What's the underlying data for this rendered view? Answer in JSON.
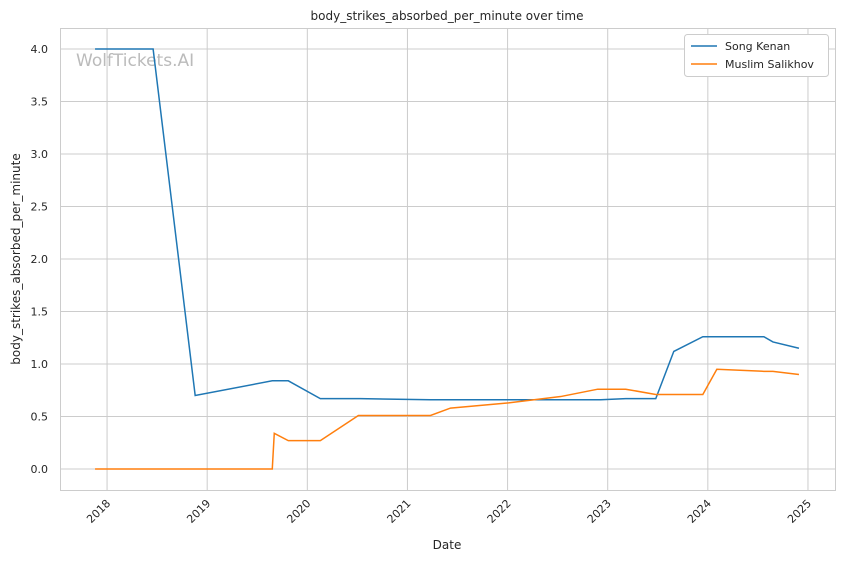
{
  "chart_data": {
    "type": "line",
    "title": "body_strikes_absorbed_per_minute over time",
    "xlabel": "Date",
    "ylabel": "body_strikes_absorbed_per_minute",
    "xlim": [
      2017.53,
      2025.27
    ],
    "ylim": [
      -0.2,
      4.2
    ],
    "x_ticks": [
      2018,
      2019,
      2020,
      2021,
      2022,
      2023,
      2024,
      2025
    ],
    "x_tick_labels": [
      "2018",
      "2019",
      "2020",
      "2021",
      "2022",
      "2023",
      "2024",
      "2025"
    ],
    "y_ticks": [
      0,
      0.5,
      1,
      1.5,
      2,
      2.5,
      3,
      3.5,
      4
    ],
    "y_tick_labels": [
      "0.0",
      "0.5",
      "1.0",
      "1.5",
      "2.0",
      "2.5",
      "3.0",
      "3.5",
      "4.0"
    ],
    "grid": true,
    "legend_position": "top-right",
    "watermark": "WolfTickets.AI",
    "series": [
      {
        "name": "Song Kenan",
        "color": "#1f77b4",
        "x": [
          2017.88,
          2018.46,
          2018.88,
          2019.65,
          2019.81,
          2020.13,
          2020.53,
          2021.23,
          2022.93,
          2023.18,
          2023.48,
          2023.66,
          2023.95,
          2024.56,
          2024.65,
          2024.91
        ],
        "y": [
          4.0,
          4.0,
          0.7,
          0.84,
          0.84,
          0.67,
          0.67,
          0.66,
          0.66,
          0.67,
          0.67,
          1.12,
          1.26,
          1.26,
          1.21,
          1.15
        ]
      },
      {
        "name": "Muslim Salikhov",
        "color": "#ff7f0e",
        "x": [
          2017.88,
          2019.65,
          2019.67,
          2019.81,
          2020.13,
          2020.51,
          2021.23,
          2021.43,
          2022.01,
          2022.53,
          2022.9,
          2023.18,
          2023.48,
          2023.95,
          2024.09,
          2024.56,
          2024.65,
          2024.91
        ],
        "y": [
          0.0,
          0.0,
          0.34,
          0.27,
          0.27,
          0.51,
          0.51,
          0.58,
          0.63,
          0.69,
          0.76,
          0.76,
          0.71,
          0.71,
          0.95,
          0.93,
          0.93,
          0.9
        ]
      }
    ]
  }
}
